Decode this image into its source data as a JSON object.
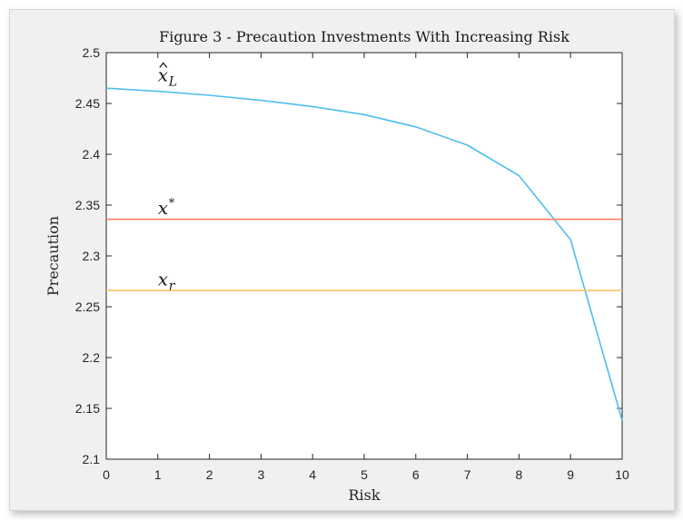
{
  "chart_data": {
    "type": "line",
    "title": "Figure 3 - Precaution Investments With Increasing Risk",
    "xlabel": "Risk",
    "ylabel": "Precaution",
    "xlim": [
      0,
      10
    ],
    "ylim": [
      2.1,
      2.5
    ],
    "x_ticks": [
      "0",
      "1",
      "2",
      "3",
      "4",
      "5",
      "6",
      "7",
      "8",
      "9",
      "10"
    ],
    "y_ticks": [
      "2.1",
      "2.15",
      "2.2",
      "2.25",
      "2.3",
      "2.35",
      "2.4",
      "2.45",
      "2.5"
    ],
    "grid": false,
    "series": [
      {
        "name": "x̂L",
        "color": "#4dbeee",
        "x": [
          0,
          1,
          2,
          3,
          4,
          5,
          6,
          7,
          8,
          9,
          10
        ],
        "values": [
          2.465,
          2.462,
          2.458,
          2.453,
          2.447,
          2.439,
          2.427,
          2.409,
          2.379,
          2.316,
          2.138
        ]
      },
      {
        "name": "x*",
        "color": "#ff7f5e",
        "x": [
          0,
          10
        ],
        "values": [
          2.336,
          2.336
        ]
      },
      {
        "name": "xr",
        "color": "#f5c26b",
        "x": [
          0,
          10
        ],
        "values": [
          2.266,
          2.266
        ]
      }
    ],
    "series_label_positions": [
      {
        "x": 1.0,
        "y": 2.472
      },
      {
        "x": 1.0,
        "y": 2.341
      },
      {
        "x": 1.0,
        "y": 2.271
      }
    ]
  }
}
